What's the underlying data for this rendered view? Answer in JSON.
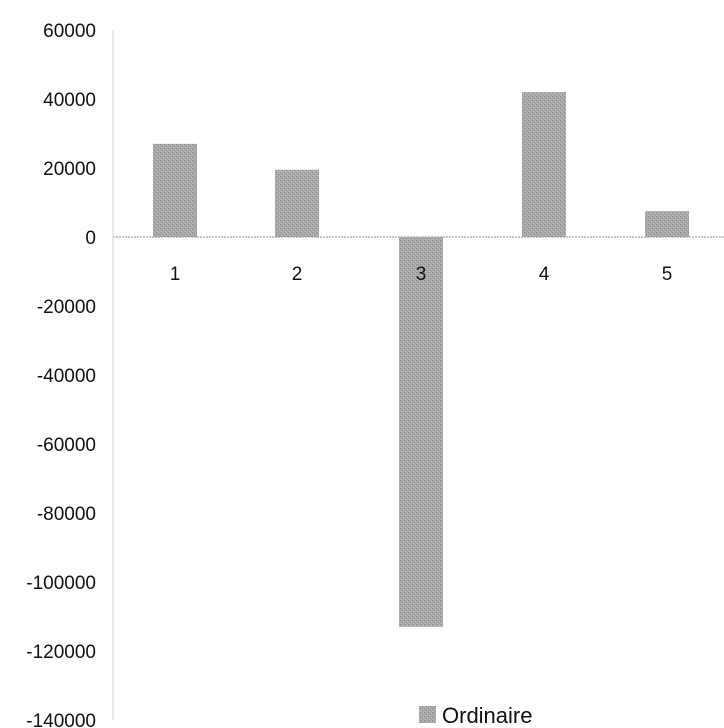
{
  "chart_data": {
    "type": "bar",
    "categories": [
      "1",
      "2",
      "3",
      "4",
      "5"
    ],
    "series": [
      {
        "name": "Ordinaire",
        "values": [
          27000,
          19500,
          -113000,
          42000,
          7500
        ]
      }
    ],
    "yticks": [
      "60000",
      "40000",
      "20000",
      "0",
      "-20000",
      "-40000",
      "-60000",
      "-80000",
      "-100000",
      "-120000",
      "-140000"
    ],
    "ylim": [
      -140000,
      60000
    ],
    "grid": false,
    "legend_position": "bottom-center",
    "bar_color": "#a3a3a3"
  }
}
